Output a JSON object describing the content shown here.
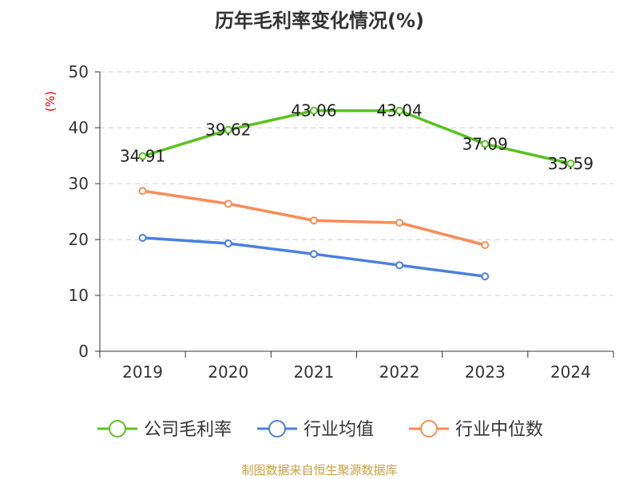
{
  "chart_data": {
    "type": "line",
    "title": "历年毛利率变化情况(%)",
    "ylabel": "(%)",
    "xlabel": "",
    "categories": [
      "2019",
      "2020",
      "2021",
      "2022",
      "2023",
      "2024"
    ],
    "ylim": [
      0,
      50
    ],
    "yticks": [
      0,
      10,
      20,
      30,
      40,
      50
    ],
    "grid": true,
    "legend_position": "bottom",
    "series": [
      {
        "name": "公司毛利率",
        "color": "#5ac21f",
        "values": [
          34.91,
          39.62,
          43.06,
          43.04,
          37.09,
          33.59
        ],
        "labels": [
          "34.91",
          "39.62",
          "43.06",
          "43.04",
          "37.09",
          "33.59"
        ]
      },
      {
        "name": "行业均值",
        "color": "#4a7fde",
        "values": [
          20.3,
          19.3,
          17.4,
          15.4,
          13.4,
          null
        ]
      },
      {
        "name": "行业中位数",
        "color": "#fb8b55",
        "values": [
          28.7,
          26.4,
          23.4,
          23.0,
          19.0,
          null
        ]
      }
    ]
  },
  "footer": "制图数据来自恒生聚源数据库"
}
